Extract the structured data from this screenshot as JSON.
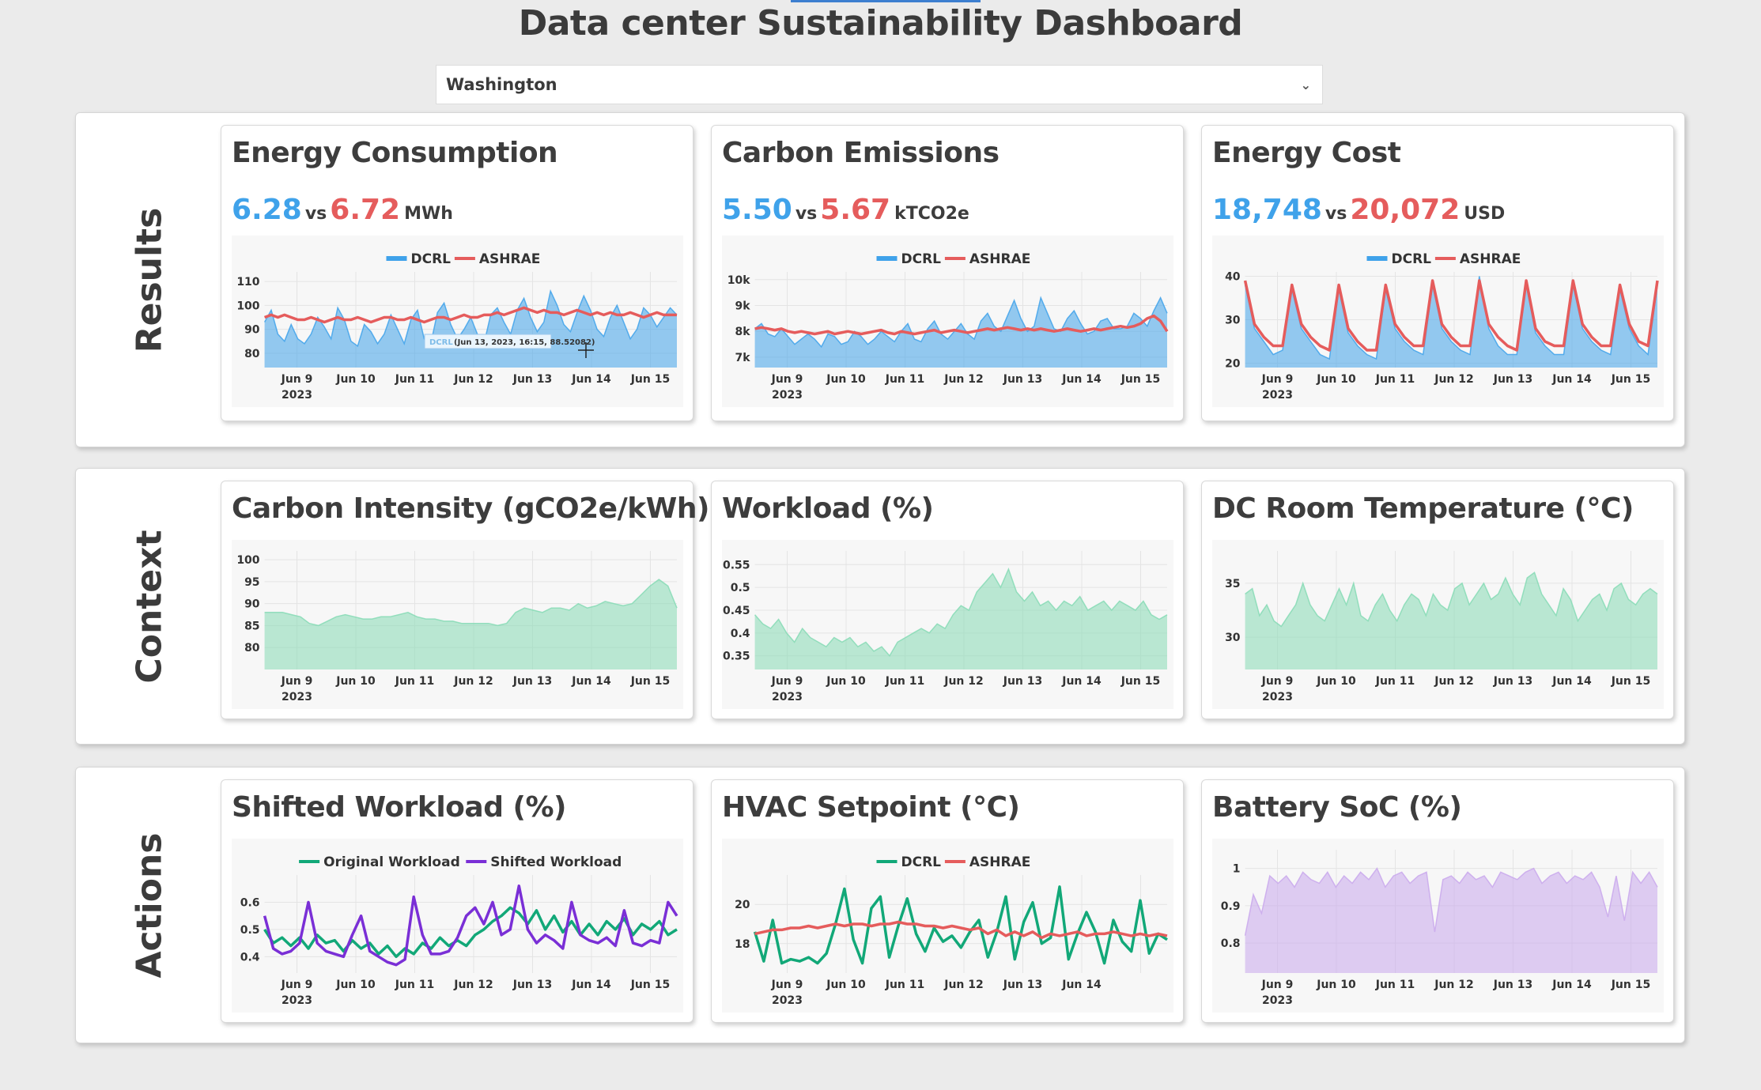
{
  "page": {
    "title": "Data center Sustainability Dashboard"
  },
  "location_select": {
    "value": "Washington"
  },
  "colors": {
    "dcrl": "#3fa2ea",
    "ashrae": "#e55c5c",
    "context": "#86dbb5",
    "green_line": "#12a878",
    "purple_line": "#7a2fd6",
    "battery": "#c9a8ec"
  },
  "sections": [
    {
      "label": "Results"
    },
    {
      "label": "Context"
    },
    {
      "label": "Actions"
    }
  ],
  "cards": {
    "energy": {
      "title": "Energy Consumption",
      "value_a": "6.28",
      "vs": "vs",
      "value_b": "6.72",
      "unit": "MWh"
    },
    "carbon": {
      "title": "Carbon Emissions",
      "value_a": "5.50",
      "vs": "vs",
      "value_b": "5.67",
      "unit": "kTCO2e"
    },
    "cost": {
      "title": "Energy Cost",
      "value_a": "18,748",
      "vs": "vs",
      "value_b": "20,072",
      "unit": "USD"
    },
    "intensity": {
      "title": "Carbon Intensity (gCO2e/kWh)"
    },
    "workload": {
      "title": "Workload (%)"
    },
    "temperature": {
      "title": "DC Room Temperature (°C)"
    },
    "shifted": {
      "title": "Shifted Workload (%)"
    },
    "hvac": {
      "title": "HVAC Setpoint (°C)"
    },
    "battery": {
      "title": "Battery SoC (%)"
    }
  },
  "tooltip": {
    "text": "(Jun 13, 2023, 16:15, 88.52082)",
    "series": "DCRL"
  },
  "chart_data": [
    {
      "id": "energy",
      "type": "area",
      "x_ticks": [
        "Jun 9",
        "Jun 10",
        "Jun 11",
        "Jun 12",
        "Jun 13",
        "Jun 14",
        "Jun 15"
      ],
      "x_year": "2023",
      "ylim": [
        74,
        114
      ],
      "y_ticks": [
        80,
        90,
        100,
        110
      ],
      "legend": "top-center",
      "series": [
        {
          "name": "DCRL",
          "kind": "area",
          "color": "#3fa2ea",
          "values": [
            93,
            98,
            88,
            85,
            92,
            86,
            84,
            88,
            95,
            91,
            86,
            99,
            94,
            85,
            83,
            92,
            89,
            84,
            88,
            96,
            90,
            84,
            94,
            98,
            86,
            84,
            97,
            101,
            92,
            86,
            90,
            95,
            88,
            84,
            96,
            99,
            93,
            88,
            98,
            103,
            95,
            89,
            93,
            106,
            100,
            92,
            89,
            97,
            104,
            98,
            90,
            87,
            95,
            100,
            93,
            86,
            90,
            99,
            96,
            91,
            95,
            99,
            96
          ]
        },
        {
          "name": "ASHRAE",
          "kind": "line",
          "color": "#e55c5c",
          "values": [
            95,
            96,
            95,
            96,
            95,
            94,
            94,
            95,
            94,
            93,
            94,
            95,
            94,
            94,
            95,
            94,
            93,
            94,
            95,
            95,
            94,
            94,
            95,
            94,
            93,
            94,
            95,
            95,
            94,
            95,
            96,
            95,
            95,
            96,
            96,
            97,
            96,
            97,
            98,
            99,
            98,
            97,
            98,
            97,
            97,
            96,
            97,
            98,
            97,
            96,
            97,
            96,
            97,
            96,
            96,
            97,
            96,
            95,
            96,
            97,
            96,
            96,
            96
          ]
        }
      ]
    },
    {
      "id": "carbon",
      "type": "area",
      "x_ticks": [
        "Jun 9",
        "Jun 10",
        "Jun 11",
        "Jun 12",
        "Jun 13",
        "Jun 14",
        "Jun 15"
      ],
      "x_year": "2023",
      "ylim": [
        6600,
        10300
      ],
      "y_ticks": [
        "7k",
        "8k",
        "9k",
        "10k"
      ],
      "legend": "top-center",
      "series": [
        {
          "name": "DCRL",
          "kind": "area",
          "color": "#3fa2ea",
          "values": [
            8100,
            8300,
            7900,
            7800,
            8100,
            7800,
            7500,
            7700,
            7900,
            7700,
            7400,
            7900,
            7800,
            7500,
            7600,
            8000,
            7800,
            7500,
            7700,
            8000,
            7800,
            7600,
            8000,
            8300,
            7700,
            7600,
            8100,
            8400,
            7900,
            7700,
            8000,
            8300,
            7900,
            7700,
            8400,
            8700,
            8200,
            8000,
            8600,
            9200,
            8500,
            8000,
            8200,
            9300,
            8700,
            8100,
            8000,
            8500,
            8800,
            8300,
            7900,
            8000,
            8400,
            8500,
            8100,
            8100,
            8200,
            8700,
            8500,
            8200,
            8800,
            9300,
            8700
          ]
        },
        {
          "name": "ASHRAE",
          "kind": "line",
          "color": "#e55c5c",
          "values": [
            8100,
            8150,
            8100,
            8050,
            8100,
            8000,
            7950,
            8000,
            7950,
            7900,
            7950,
            8000,
            7900,
            7950,
            8000,
            7950,
            7900,
            7950,
            8000,
            8050,
            7950,
            7900,
            8000,
            7950,
            7900,
            7950,
            8000,
            8050,
            7950,
            8000,
            8050,
            8000,
            7950,
            8000,
            8050,
            8100,
            8050,
            8100,
            8150,
            8100,
            8050,
            8100,
            8050,
            8100,
            8050,
            8000,
            8050,
            8100,
            8050,
            8000,
            8050,
            8100,
            8050,
            8100,
            8150,
            8200,
            8150,
            8200,
            8300,
            8500,
            8600,
            8400,
            8000
          ]
        }
      ]
    },
    {
      "id": "cost",
      "type": "area",
      "x_ticks": [
        "Jun 9",
        "Jun 10",
        "Jun 11",
        "Jun 12",
        "Jun 13",
        "Jun 14",
        "Jun 15"
      ],
      "x_year": "2023",
      "ylim": [
        19,
        41
      ],
      "y_ticks": [
        20,
        30,
        40
      ],
      "legend": "top-center",
      "series": [
        {
          "name": "DCRL",
          "kind": "area",
          "color": "#3fa2ea",
          "values": [
            38,
            28,
            25,
            22,
            23,
            37,
            28,
            25,
            22,
            21,
            37,
            27,
            24,
            22,
            21,
            37,
            28,
            25,
            23,
            22,
            38,
            28,
            25,
            23,
            22,
            40,
            28,
            24,
            22,
            22,
            38,
            27,
            24,
            22,
            22,
            38,
            28,
            25,
            23,
            22,
            37,
            28,
            24,
            22,
            38
          ]
        },
        {
          "name": "ASHRAE",
          "kind": "line",
          "color": "#e55c5c",
          "values": [
            39,
            29,
            26,
            24,
            24,
            38,
            29,
            26,
            24,
            23,
            38,
            28,
            25,
            23,
            23,
            38,
            29,
            26,
            24,
            24,
            39,
            29,
            26,
            24,
            24,
            39,
            29,
            26,
            24,
            23,
            39,
            28,
            25,
            24,
            24,
            39,
            29,
            26,
            24,
            24,
            38,
            29,
            25,
            24,
            39
          ]
        }
      ]
    },
    {
      "id": "intensity",
      "type": "area",
      "x_ticks": [
        "Jun 9",
        "Jun 10",
        "Jun 11",
        "Jun 12",
        "Jun 13",
        "Jun 14",
        "Jun 15"
      ],
      "x_year": "2023",
      "ylim": [
        75,
        102
      ],
      "y_ticks": [
        80,
        85,
        90,
        95,
        100
      ],
      "series": [
        {
          "name": "",
          "kind": "area",
          "color": "#86dbb5",
          "values": [
            88,
            88,
            88,
            87.5,
            87,
            85.5,
            85,
            86,
            87,
            87.5,
            87,
            86.5,
            86.5,
            87,
            87,
            87.5,
            88,
            87,
            86.5,
            86.5,
            86,
            86,
            85.5,
            85.5,
            85.5,
            85.5,
            85,
            85.5,
            88,
            89,
            88.5,
            88,
            89,
            89,
            88.5,
            90,
            89,
            89.5,
            90.5,
            90,
            89.5,
            90,
            92,
            94,
            95.5,
            94,
            89
          ]
        }
      ]
    },
    {
      "id": "workload",
      "type": "area",
      "x_ticks": [
        "Jun 9",
        "Jun 10",
        "Jun 11",
        "Jun 12",
        "Jun 13",
        "Jun 14",
        "Jun 15"
      ],
      "x_year": "2023",
      "ylim": [
        0.32,
        0.58
      ],
      "y_ticks": [
        0.35,
        0.4,
        0.45,
        0.5,
        0.55
      ],
      "series": [
        {
          "name": "",
          "kind": "area",
          "color": "#86dbb5",
          "values": [
            0.44,
            0.42,
            0.41,
            0.43,
            0.4,
            0.38,
            0.41,
            0.39,
            0.38,
            0.37,
            0.39,
            0.38,
            0.39,
            0.37,
            0.38,
            0.36,
            0.37,
            0.35,
            0.38,
            0.39,
            0.4,
            0.41,
            0.4,
            0.42,
            0.41,
            0.44,
            0.46,
            0.45,
            0.49,
            0.51,
            0.53,
            0.5,
            0.54,
            0.49,
            0.47,
            0.49,
            0.46,
            0.47,
            0.45,
            0.47,
            0.46,
            0.48,
            0.45,
            0.46,
            0.47,
            0.45,
            0.47,
            0.46,
            0.45,
            0.47,
            0.44,
            0.43,
            0.44
          ]
        }
      ]
    },
    {
      "id": "temperature",
      "type": "area",
      "x_ticks": [
        "Jun 9",
        "Jun 10",
        "Jun 11",
        "Jun 12",
        "Jun 13",
        "Jun 14",
        "Jun 15"
      ],
      "x_year": "2023",
      "ylim": [
        27,
        38
      ],
      "y_ticks": [
        30,
        35
      ],
      "series": [
        {
          "name": "",
          "kind": "area",
          "color": "#86dbb5",
          "values": [
            34,
            34.5,
            32,
            33,
            31.5,
            31,
            32,
            33,
            35,
            33,
            32,
            31.5,
            33,
            34.5,
            33,
            35,
            32,
            31.5,
            33,
            34,
            32.5,
            31.5,
            33,
            34,
            33.5,
            32,
            34,
            33,
            32.5,
            34.5,
            35,
            33,
            34,
            35,
            33.5,
            34,
            35.5,
            34,
            33,
            35.5,
            36,
            34,
            33,
            32,
            34.5,
            33.5,
            31.5,
            32.5,
            33.5,
            34,
            32.5,
            34.5,
            35,
            33.5,
            33,
            34,
            34.5,
            34
          ]
        }
      ]
    },
    {
      "id": "shifted",
      "type": "line",
      "x_ticks": [
        "Jun 9",
        "Jun 10",
        "Jun 11",
        "Jun 12",
        "Jun 13",
        "Jun 14",
        "Jun 15"
      ],
      "x_year": "2023",
      "ylim": [
        0.34,
        0.7
      ],
      "y_ticks": [
        0.4,
        0.5,
        0.6
      ],
      "legend": "top-center",
      "series": [
        {
          "name": "Original Workload",
          "kind": "line",
          "color": "#12a878",
          "values": [
            0.5,
            0.45,
            0.47,
            0.44,
            0.47,
            0.43,
            0.48,
            0.45,
            0.46,
            0.42,
            0.46,
            0.43,
            0.45,
            0.41,
            0.44,
            0.4,
            0.43,
            0.41,
            0.45,
            0.43,
            0.47,
            0.44,
            0.46,
            0.44,
            0.48,
            0.5,
            0.53,
            0.55,
            0.58,
            0.56,
            0.52,
            0.57,
            0.5,
            0.55,
            0.49,
            0.53,
            0.48,
            0.52,
            0.48,
            0.53,
            0.5,
            0.54,
            0.48,
            0.52,
            0.5,
            0.53,
            0.48,
            0.5
          ]
        },
        {
          "name": "Shifted Workload",
          "kind": "line",
          "color": "#7a2fd6",
          "values": [
            0.55,
            0.43,
            0.41,
            0.42,
            0.45,
            0.6,
            0.45,
            0.42,
            0.41,
            0.4,
            0.48,
            0.55,
            0.42,
            0.4,
            0.38,
            0.37,
            0.39,
            0.62,
            0.48,
            0.41,
            0.41,
            0.42,
            0.47,
            0.55,
            0.58,
            0.52,
            0.6,
            0.48,
            0.5,
            0.66,
            0.5,
            0.45,
            0.48,
            0.46,
            0.43,
            0.6,
            0.48,
            0.46,
            0.45,
            0.47,
            0.44,
            0.57,
            0.45,
            0.44,
            0.46,
            0.45,
            0.6,
            0.55
          ]
        }
      ]
    },
    {
      "id": "hvac",
      "type": "line",
      "x_ticks": [
        "Jun 9",
        "Jun 10",
        "Jun 11",
        "Jun 12",
        "Jun 13",
        "Jun 14"
      ],
      "x_year": "2023",
      "ylim": [
        16.5,
        21.5
      ],
      "y_ticks": [
        18,
        20
      ],
      "legend": "top-center",
      "series": [
        {
          "name": "DCRL",
          "kind": "line",
          "color": "#12a878",
          "values": [
            18.6,
            17.1,
            19.2,
            17,
            17.2,
            17.1,
            17.3,
            17,
            17.5,
            19,
            20.8,
            18.2,
            17,
            19.8,
            20.4,
            17.3,
            18.9,
            20.3,
            18.5,
            17.6,
            18.8,
            18.1,
            18.4,
            17.8,
            18.6,
            19.2,
            17.3,
            18.6,
            20.4,
            17.2,
            19.1,
            20.1,
            18,
            18.3,
            20.9,
            17.2,
            18.5,
            19.6,
            18.6,
            17,
            19.2,
            18.1,
            17.6,
            20.2,
            17.5,
            18.5,
            18.2
          ]
        },
        {
          "name": "ASHRAE",
          "kind": "line",
          "color": "#e55c5c",
          "values": [
            18.5,
            18.6,
            18.7,
            18.7,
            18.8,
            18.8,
            18.9,
            18.8,
            18.9,
            19,
            18.9,
            19,
            19,
            18.9,
            19,
            19,
            19.1,
            19,
            19,
            18.9,
            18.9,
            18.8,
            18.9,
            18.8,
            18.7,
            18.8,
            18.5,
            18.7,
            18.4,
            18.6,
            18.4,
            18.6,
            18.3,
            18.5,
            18.4,
            18.5,
            18.6,
            18.4,
            18.5,
            18.5,
            18.6,
            18.5,
            18.4,
            18.5,
            18.4,
            18.5,
            18.4
          ]
        }
      ]
    },
    {
      "id": "battery",
      "type": "area",
      "x_ticks": [
        "Jun 9",
        "Jun 10",
        "Jun 11",
        "Jun 12",
        "Jun 13",
        "Jun 14",
        "Jun 15"
      ],
      "x_year": "2023",
      "ylim": [
        0.72,
        1.05
      ],
      "y_ticks": [
        0.8,
        0.9,
        1
      ],
      "series": [
        {
          "name": "",
          "kind": "area",
          "color": "#c9a8ec",
          "values": [
            0.82,
            0.93,
            0.88,
            0.98,
            0.96,
            0.98,
            0.95,
            0.99,
            0.97,
            0.96,
            0.99,
            0.95,
            0.98,
            0.96,
            0.99,
            0.97,
            1,
            0.95,
            0.98,
            0.99,
            0.96,
            0.98,
            0.99,
            0.83,
            0.97,
            0.98,
            0.96,
            0.99,
            0.97,
            0.98,
            0.95,
            0.99,
            0.98,
            0.97,
            0.99,
            1,
            0.96,
            0.98,
            0.99,
            0.96,
            0.98,
            0.97,
            0.99,
            0.95,
            0.87,
            0.98,
            0.86,
            0.99,
            0.96,
            0.99,
            0.95
          ]
        }
      ]
    }
  ]
}
